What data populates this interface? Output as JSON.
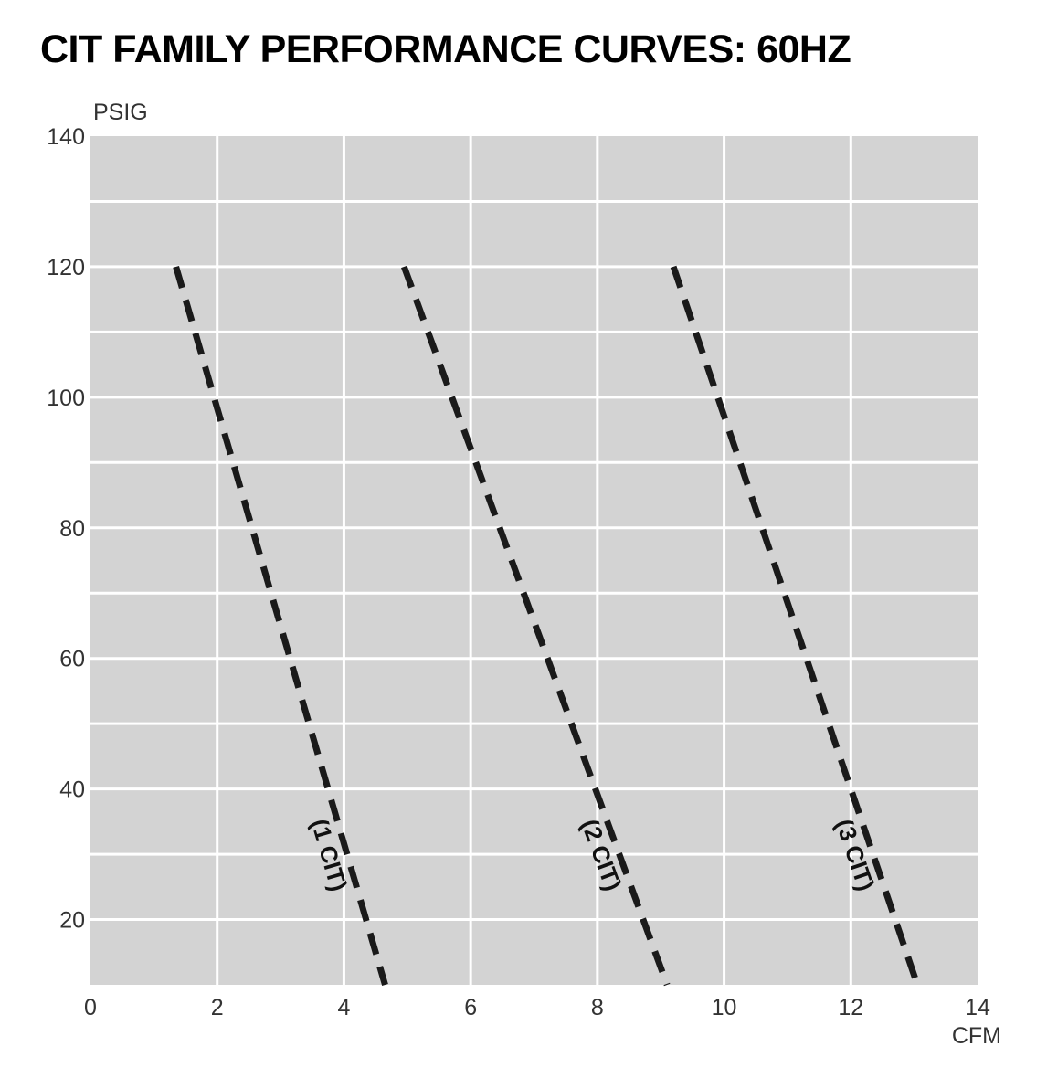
{
  "title": "CIT FAMILY PERFORMANCE CURVES: 60HZ",
  "chart_data": {
    "type": "line",
    "title": "CIT FAMILY PERFORMANCE CURVES: 60HZ",
    "xlabel": "CFM",
    "ylabel": "PSIG",
    "xlim": [
      0,
      14
    ],
    "ylim": [
      10,
      140
    ],
    "x_ticks": [
      0,
      2,
      4,
      6,
      8,
      10,
      12,
      14
    ],
    "y_ticks": [
      20,
      40,
      60,
      80,
      100,
      120,
      140
    ],
    "grid": true,
    "legend": "none",
    "colors": {
      "plot_background": "#d3d3d3",
      "grid": "#ffffff",
      "line": "#1a1a1a"
    },
    "series": [
      {
        "name": "(1 CIT)",
        "x": [
          1.35,
          4.65
        ],
        "y": [
          120,
          10
        ]
      },
      {
        "name": "(2 CIT)",
        "x": [
          4.95,
          9.1
        ],
        "y": [
          120,
          10
        ]
      },
      {
        "name": "(3 CIT)",
        "x": [
          9.2,
          13.05
        ],
        "y": [
          120,
          10
        ]
      }
    ]
  }
}
